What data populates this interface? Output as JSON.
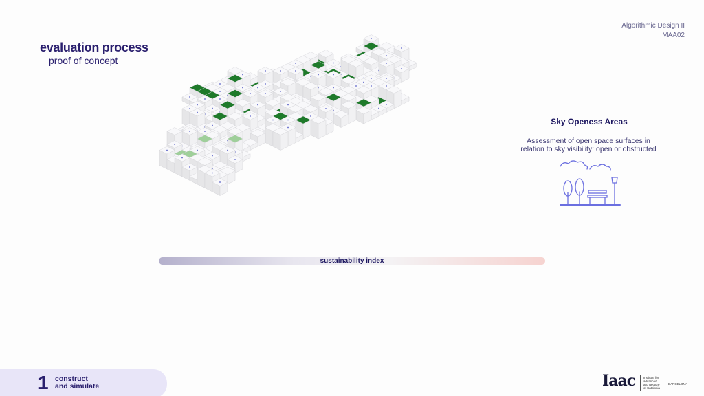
{
  "header": {
    "title": "evaluation process",
    "subtitle": "proof of concept"
  },
  "course": {
    "name": "Algorithmic Design II",
    "code": "MAA02"
  },
  "panel": {
    "title": "Sky Openess Areas",
    "description": [
      "Assessment of open space surfaces in",
      "relation to sky visibility: open or obstructed"
    ]
  },
  "bar": {
    "label": "sustainability index"
  },
  "footer": {
    "step_number": "1",
    "step_label": [
      "construct",
      "and simulate"
    ]
  },
  "logo": {
    "wordmark": "Iaac",
    "institute": [
      "Institute for",
      "advanced",
      "architecture",
      "of Catalonia"
    ],
    "city": "BARCELONA"
  }
}
